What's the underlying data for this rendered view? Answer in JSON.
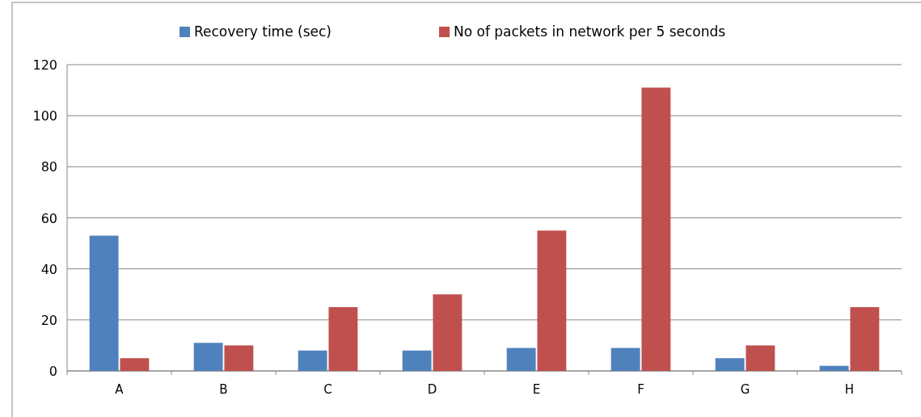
{
  "chart_data": {
    "type": "bar",
    "categories": [
      "A",
      "B",
      "C",
      "D",
      "E",
      "F",
      "G",
      "H"
    ],
    "series": [
      {
        "name": "Recovery time (sec)",
        "color": "#4f81bd",
        "values": [
          53,
          11,
          8,
          8,
          9,
          9,
          5,
          2
        ]
      },
      {
        "name": "No of packets in network per 5 seconds",
        "color": "#c0504d",
        "values": [
          5,
          10,
          25,
          30,
          55,
          111,
          10,
          25
        ]
      }
    ],
    "ylim": [
      0,
      120
    ],
    "yticks": [
      0,
      20,
      40,
      60,
      80,
      100,
      120
    ],
    "grid": "y",
    "legend": "top"
  }
}
